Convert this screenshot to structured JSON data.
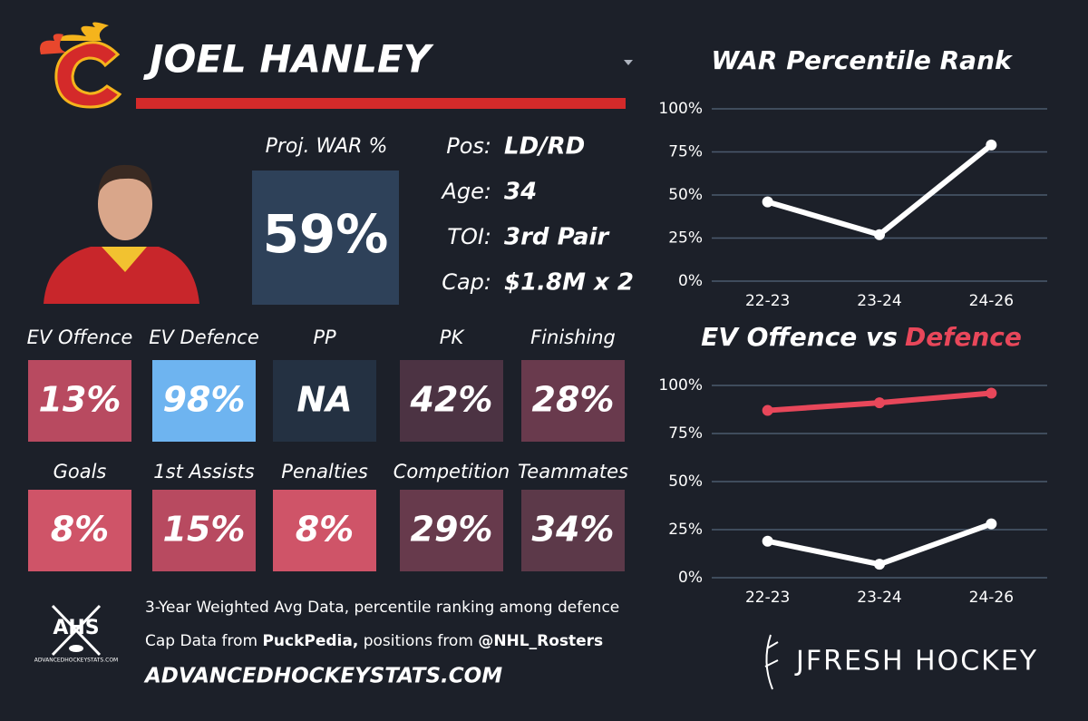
{
  "header": {
    "name": "JOEL HANLEY"
  },
  "proj_war": {
    "label": "Proj. WAR %",
    "value": "59%",
    "color": "#2e4159"
  },
  "info": [
    {
      "label": "Pos:",
      "value": "LD/RD"
    },
    {
      "label": "Age:",
      "value": "34"
    },
    {
      "label": "TOI:",
      "value": "3rd Pair"
    },
    {
      "label": "Cap:",
      "value": "$1.8M x 2"
    }
  ],
  "tiles": [
    [
      {
        "label": "EV Offence",
        "value": "13%",
        "color": "#b84a60"
      },
      {
        "label": "EV Defence",
        "value": "98%",
        "color": "#6eb4f0"
      },
      {
        "label": "PP",
        "value": "NA",
        "color": "#243142"
      },
      {
        "label": "PK",
        "value": "42%",
        "color": "#4c3343"
      },
      {
        "label": "Finishing",
        "value": "28%",
        "color": "#693a4d"
      }
    ],
    [
      {
        "label": "Goals",
        "value": "8%",
        "color": "#cf5468"
      },
      {
        "label": "1st Assists",
        "value": "15%",
        "color": "#b84a60"
      },
      {
        "label": "Penalties",
        "value": "8%",
        "color": "#cf5468"
      },
      {
        "label": "Competition",
        "value": "29%",
        "color": "#673a4c"
      },
      {
        "label": "Teammates",
        "value": "34%",
        "color": "#5c3949"
      }
    ]
  ],
  "footer": {
    "logo": "AHS",
    "logo_sub": "ADVANCEDHOCKEYSTATS.COM",
    "line1": "3-Year Weighted Avg Data, percentile ranking among defence",
    "line2": [
      "Cap Data from",
      "PuckPedia,",
      "positions from",
      "@NHL_Rosters"
    ],
    "website": "ADVANCEDHOCKEYSTATS.COM",
    "brand": "JFRESH HOCKEY"
  },
  "chart_data": [
    {
      "type": "line",
      "title": [
        "WAR Percentile Rank"
      ],
      "categories": [
        "22-23",
        "23-24",
        "24-26"
      ],
      "series": [
        {
          "color": "#ffffff",
          "values": [
            46,
            27,
            79
          ]
        }
      ],
      "ylim": [
        0,
        100
      ],
      "yticks": [
        {
          "value": 0,
          "label": "0%"
        },
        {
          "value": 25,
          "label": "25%"
        },
        {
          "value": 50,
          "label": "50%"
        },
        {
          "value": 75,
          "label": "75%"
        },
        {
          "value": 100,
          "label": "100%"
        }
      ],
      "grid": true
    },
    {
      "type": "line",
      "title": [
        "EV Offence vs",
        "Defence"
      ],
      "categories": [
        "22-23",
        "23-24",
        "24-26"
      ],
      "series": [
        {
          "color": "#ffffff",
          "values": [
            19,
            7,
            28
          ]
        },
        {
          "color": "#e8475a",
          "values": [
            87,
            91,
            96
          ]
        }
      ],
      "ylim": [
        0,
        100
      ],
      "yticks": [
        {
          "value": 0,
          "label": "0%"
        },
        {
          "value": 25,
          "label": "25%"
        },
        {
          "value": 50,
          "label": "50%"
        },
        {
          "value": 75,
          "label": "75%"
        },
        {
          "value": 100,
          "label": "100%"
        }
      ],
      "grid": true
    }
  ]
}
